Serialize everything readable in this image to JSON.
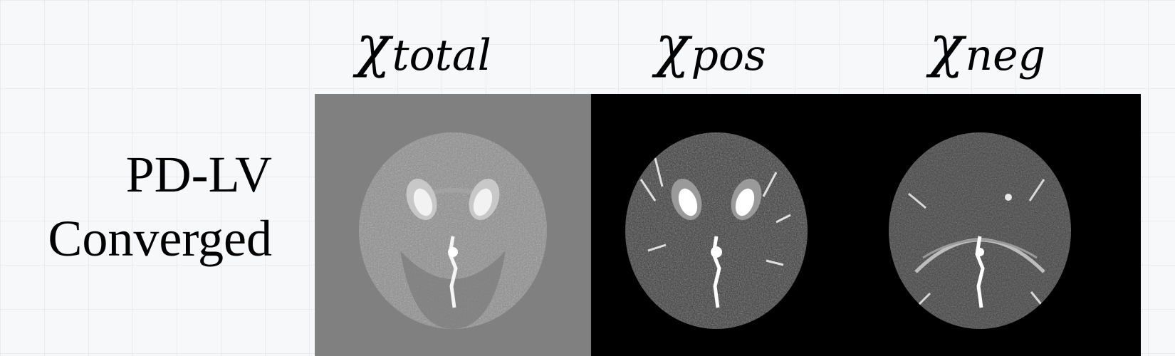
{
  "figure": {
    "columns": [
      {
        "symbol": "χ",
        "subscript": "total"
      },
      {
        "symbol": "χ",
        "subscript": "pos"
      },
      {
        "symbol": "χ",
        "subscript": "neg"
      }
    ],
    "row_label": {
      "line1": "PD-LV",
      "line2": "Converged"
    },
    "panels": [
      {
        "column": "total",
        "background": "#808080",
        "image": "axial brain susceptibility map (total)"
      },
      {
        "column": "pos",
        "background": "#000000",
        "image": "axial brain susceptibility map (positive)"
      },
      {
        "column": "neg",
        "background": "#000000",
        "image": "axial brain susceptibility map (negative)"
      }
    ]
  }
}
